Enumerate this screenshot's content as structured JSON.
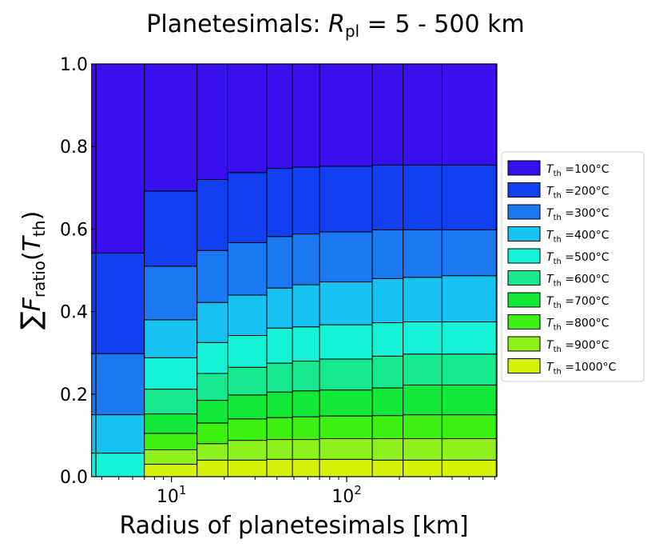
{
  "chart_data": {
    "type": "bar",
    "stacked": true,
    "title": {
      "base": "Planetesimals: ",
      "var": "R",
      "sub": "pl",
      "rest": " = 5 - 500 km"
    },
    "xlabel": "Radius of planetesimals [km]",
    "ylabel": {
      "prefix": "∑",
      "var": "F",
      "sub": "ratio",
      "arg_open": "(",
      "arg_var": "T",
      "arg_sub": "th",
      "arg_close": ")"
    },
    "xscale": "log",
    "xlim": [
      3.7,
      720
    ],
    "ylim": [
      0,
      1.0
    ],
    "yticks": [
      "0.0",
      "0.2",
      "0.4",
      "0.6",
      "0.8",
      "1.0"
    ],
    "xticks": [
      {
        "base": "10",
        "exp": "1",
        "value": 10
      },
      {
        "base": "10",
        "exp": "2",
        "value": 100
      }
    ],
    "grid": "y",
    "legend_placement": "right",
    "colors": [
      "#d6f20a",
      "#8ef01c",
      "#3cf012",
      "#12e838",
      "#16e88e",
      "#16f2d6",
      "#16c2f2",
      "#1a78f2",
      "#1040f0",
      "#3810f0"
    ],
    "legend": [
      {
        "var": "T",
        "sub": "th",
        "text": " =100°C"
      },
      {
        "var": "T",
        "sub": "th",
        "text": " =200°C"
      },
      {
        "var": "T",
        "sub": "th",
        "text": " =300°C"
      },
      {
        "var": "T",
        "sub": "th",
        "text": " =400°C"
      },
      {
        "var": "T",
        "sub": "th",
        "text": " =500°C"
      },
      {
        "var": "T",
        "sub": "th",
        "text": " =600°C"
      },
      {
        "var": "T",
        "sub": "th",
        "text": " =700°C"
      },
      {
        "var": "T",
        "sub": "th",
        "text": " =800°C"
      },
      {
        "var": "T",
        "sub": "th",
        "text": " =900°C"
      },
      {
        "var": "T",
        "sub": "th",
        "text": " =1000°C"
      }
    ],
    "bars": [
      {
        "x": 5,
        "tops": [
          0.0,
          0.0,
          0.0,
          0.0,
          0.0,
          0.057,
          0.15,
          0.298,
          0.542,
          1.0
        ]
      },
      {
        "x": 10,
        "tops": [
          0.03,
          0.065,
          0.105,
          0.152,
          0.212,
          0.288,
          0.38,
          0.51,
          0.692,
          1.0
        ]
      },
      {
        "x": 20,
        "tops": [
          0.04,
          0.08,
          0.13,
          0.185,
          0.25,
          0.325,
          0.422,
          0.548,
          0.72,
          1.0
        ]
      },
      {
        "x": 30,
        "tops": [
          0.04,
          0.088,
          0.14,
          0.198,
          0.265,
          0.342,
          0.44,
          0.567,
          0.737,
          1.0
        ]
      },
      {
        "x": 50,
        "tops": [
          0.042,
          0.09,
          0.143,
          0.205,
          0.275,
          0.36,
          0.457,
          0.582,
          0.747,
          1.0
        ]
      },
      {
        "x": 70,
        "tops": [
          0.042,
          0.09,
          0.145,
          0.208,
          0.28,
          0.363,
          0.465,
          0.588,
          0.75,
          1.0
        ]
      },
      {
        "x": 100,
        "tops": [
          0.042,
          0.092,
          0.147,
          0.21,
          0.285,
          0.368,
          0.472,
          0.593,
          0.752,
          1.0
        ]
      },
      {
        "x": 200,
        "tops": [
          0.04,
          0.092,
          0.148,
          0.215,
          0.292,
          0.373,
          0.48,
          0.598,
          0.755,
          1.0
        ]
      },
      {
        "x": 300,
        "tops": [
          0.04,
          0.092,
          0.15,
          0.222,
          0.297,
          0.375,
          0.483,
          0.598,
          0.755,
          1.0
        ]
      },
      {
        "x": 500,
        "tops": [
          0.04,
          0.092,
          0.15,
          0.222,
          0.297,
          0.375,
          0.487,
          0.598,
          0.755,
          1.0
        ]
      }
    ]
  }
}
